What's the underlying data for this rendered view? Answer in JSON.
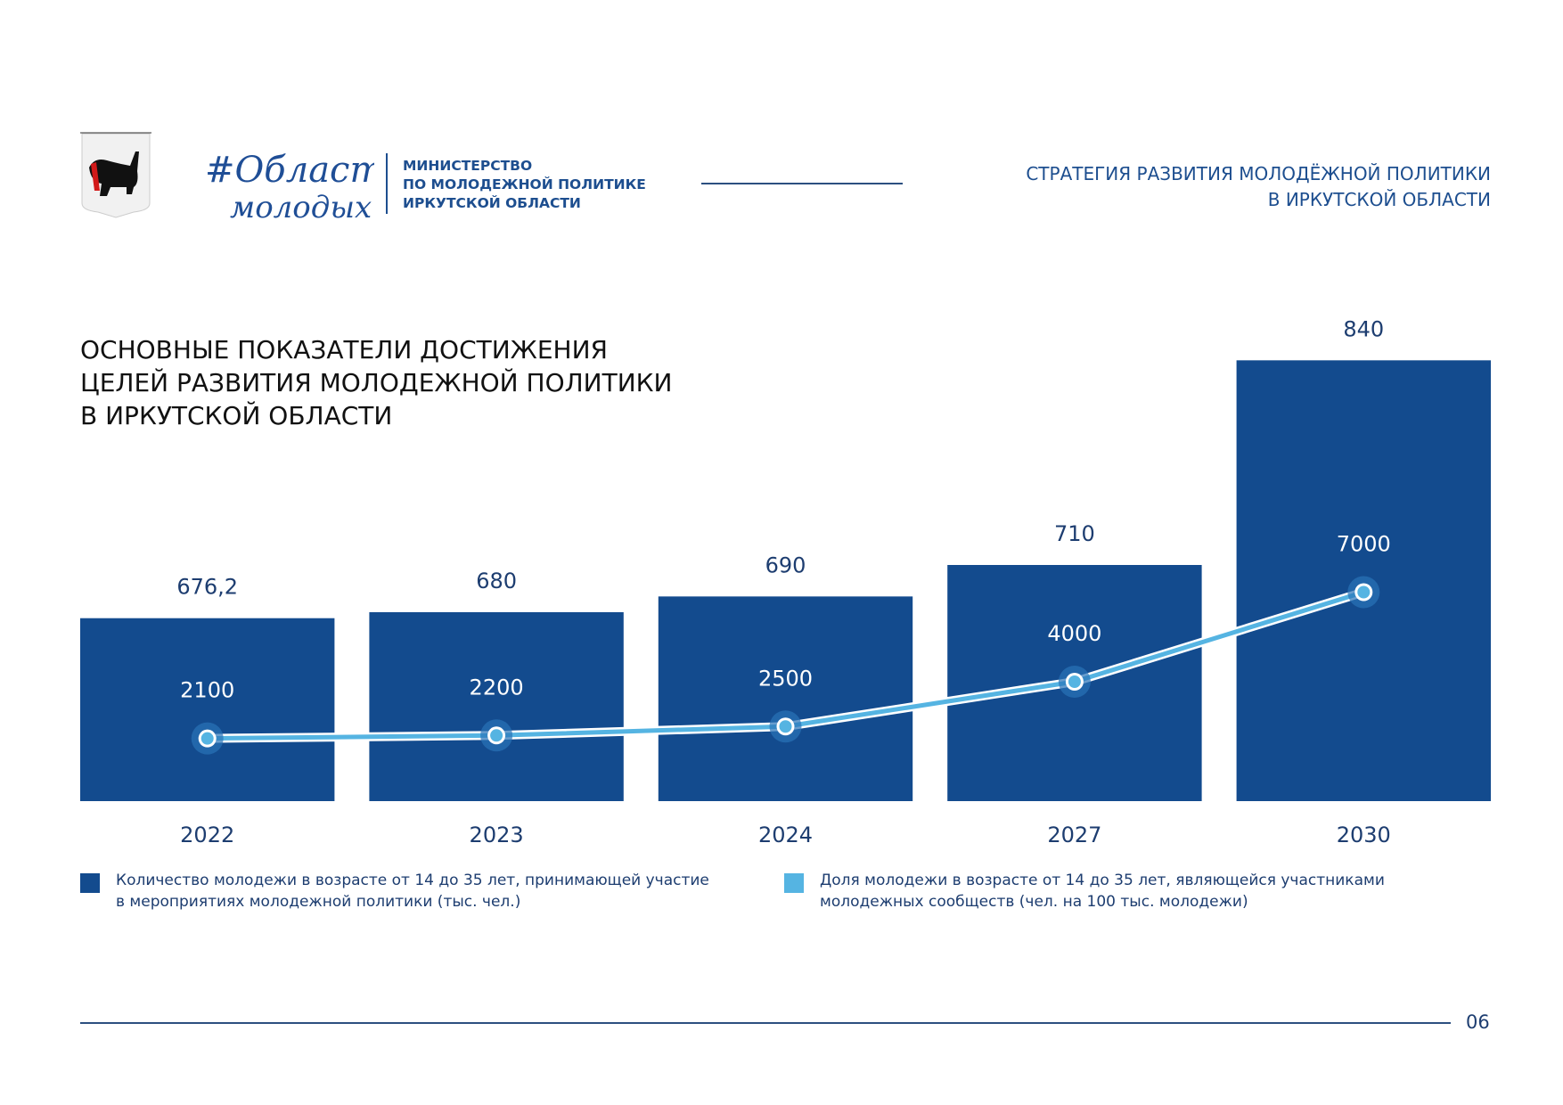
{
  "header": {
    "brand_logo_text": "#Область молодых",
    "ministry_lines": [
      "МИНИСТЕРСТВО",
      "ПО МОЛОДЕЖНОЙ ПОЛИТИКЕ",
      "ИРКУТСКОЙ ОБЛАСТИ"
    ],
    "strategy_lines": [
      "СТРАТЕГИЯ РАЗВИТИЯ МОЛОДЁЖНОЙ ПОЛИТИКИ",
      "В ИРКУТСКОЙ ОБЛАСТИ"
    ]
  },
  "title_lines": [
    "ОСНОВНЫЕ ПОКАЗАТЕЛИ ДОСТИЖЕНИЯ",
    "ЦЕЛЕЙ РАЗВИТИЯ МОЛОДЕЖНОЙ ПОЛИТИКИ",
    "В ИРКУТСКОЙ ОБЛАСТИ"
  ],
  "footer": {
    "page_number": "06"
  },
  "colors": {
    "bar": "#134b8e",
    "line": "#55b4e2",
    "text": "#1d3d70"
  },
  "chart_data": {
    "type": "bar+line",
    "categories": [
      "2022",
      "2023",
      "2024",
      "2027",
      "2030"
    ],
    "series": [
      {
        "type": "bar",
        "name": "Количество молодежи в возрасте от 14 до 35 лет, принимающей участие в мероприятиях молодежной политики (тыс. чел.)",
        "values": [
          676.2,
          680,
          690,
          710,
          840
        ],
        "labels": [
          "676,2",
          "680",
          "690",
          "710",
          "840"
        ],
        "color": "#134b8e"
      },
      {
        "type": "line",
        "name": "Доля молодежи в возрасте от 14 до 35 лет, являющейся участниками молодежных сообществ (чел. на 100 тыс. молодежи)",
        "values": [
          2100,
          2200,
          2500,
          4000,
          7000
        ],
        "labels": [
          "2100",
          "2200",
          "2500",
          "4000",
          "7000"
        ],
        "color": "#55b4e2"
      }
    ],
    "legend": {
      "position": "bottom",
      "entries": [
        [
          "Количество молодежи в возрасте от 14 до 35 лет, принимающей участие",
          "в мероприятиях молодежной политики (тыс. чел.)"
        ],
        [
          "Доля молодежи в возрасте от 14 до 35 лет, являющейся участниками",
          "молодежных сообществ (чел. на 100 тыс. молодежи)"
        ]
      ]
    },
    "grid": false
  }
}
